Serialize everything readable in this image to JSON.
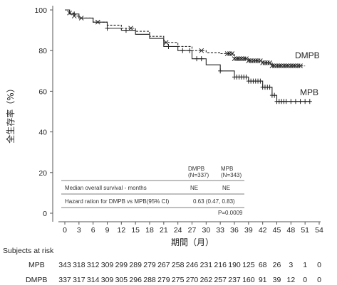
{
  "chart_data": {
    "type": "line",
    "ylabel": "全生存率（%）",
    "xlabel": "期間（月）",
    "ylim": [
      0,
      100
    ],
    "xlim": [
      0,
      54
    ],
    "x_ticks": [
      0,
      3,
      6,
      9,
      12,
      15,
      18,
      21,
      24,
      27,
      30,
      33,
      36,
      39,
      42,
      45,
      48,
      51,
      54
    ],
    "y_ticks": [
      0,
      20,
      40,
      60,
      80,
      100
    ],
    "series": [
      {
        "name": "DMPB",
        "style": "dashed",
        "censor_marker": "x",
        "points": [
          [
            0,
            100
          ],
          [
            1,
            98.5
          ],
          [
            2,
            97
          ],
          [
            3,
            96
          ],
          [
            6,
            94
          ],
          [
            9,
            92.5
          ],
          [
            12,
            91
          ],
          [
            15,
            89.5
          ],
          [
            18,
            87
          ],
          [
            21,
            84
          ],
          [
            24,
            82
          ],
          [
            27,
            80
          ],
          [
            30,
            79
          ],
          [
            33,
            78.5
          ],
          [
            36,
            76
          ],
          [
            39,
            75
          ],
          [
            42,
            74
          ],
          [
            44,
            72.5
          ],
          [
            48,
            72.5
          ],
          [
            51,
            72.5
          ]
        ],
        "censored_x": [
          1.0,
          2.0,
          3.5,
          7.0,
          14.0,
          21.5,
          29.0,
          34.5,
          35.0,
          35.5,
          36.0,
          36.5,
          37.0,
          37.5,
          38.0,
          38.5,
          39.0,
          39.5,
          40.0,
          40.5,
          41.0,
          41.5,
          42.0,
          42.5,
          43.0,
          43.5,
          44.0,
          44.5,
          45.0,
          45.5,
          46.0,
          46.5,
          47.0,
          47.5,
          48.0,
          48.5,
          49.0,
          49.5,
          50.0
        ]
      },
      {
        "name": "MPB",
        "style": "solid",
        "censor_marker": "+",
        "points": [
          [
            0,
            100
          ],
          [
            1,
            98
          ],
          [
            3,
            96
          ],
          [
            6,
            94
          ],
          [
            9,
            91
          ],
          [
            12,
            90
          ],
          [
            15,
            88
          ],
          [
            18,
            86
          ],
          [
            21,
            82
          ],
          [
            24,
            80
          ],
          [
            27,
            76
          ],
          [
            30,
            73
          ],
          [
            33,
            70
          ],
          [
            36,
            67
          ],
          [
            39,
            65
          ],
          [
            42,
            62
          ],
          [
            44,
            58
          ],
          [
            45,
            55
          ],
          [
            48,
            55
          ],
          [
            52,
            55
          ]
        ],
        "censored_x": [
          2.0,
          9.0,
          13.0,
          22.0,
          25.0,
          26.5,
          28.0,
          29.0,
          33.0,
          36.0,
          36.5,
          37.0,
          37.5,
          38.0,
          38.5,
          39.0,
          39.5,
          40.0,
          40.5,
          41.0,
          41.5,
          42.0,
          42.5,
          43.0,
          43.5,
          44.0,
          44.5,
          45.0,
          45.5,
          46.0,
          46.5,
          47.0,
          48.0,
          49.0,
          50.0,
          51.0,
          52.0
        ]
      }
    ],
    "inset_table": {
      "col_headers": [
        [
          "DMPB",
          "(N=337)"
        ],
        [
          "MPB",
          "(N=343)"
        ]
      ],
      "rows": [
        {
          "label": "Median overall survival - months",
          "dmpb": "NE",
          "mpb": "NE"
        },
        {
          "label": "Hazard ration for DMPB vs MPB(95% CI)",
          "value": "0.63 (0.47, 0.83)"
        }
      ],
      "pvalue": "P=0.0009"
    },
    "risk_table": {
      "title": "Subjects at risk",
      "rows": [
        {
          "label": "MPB",
          "values": [
            "343",
            "318",
            "312",
            "309",
            "299",
            "289",
            "279",
            "267",
            "258",
            "246",
            "231",
            "216",
            "190",
            "125",
            "68",
            "26",
            "3",
            "1",
            "0"
          ]
        },
        {
          "label": "DMPB",
          "values": [
            "337",
            "317",
            "314",
            "309",
            "305",
            "296",
            "288",
            "279",
            "275",
            "270",
            "262",
            "257",
            "237",
            "160",
            "91",
            "39",
            "12",
            "0",
            "0"
          ]
        }
      ]
    }
  }
}
